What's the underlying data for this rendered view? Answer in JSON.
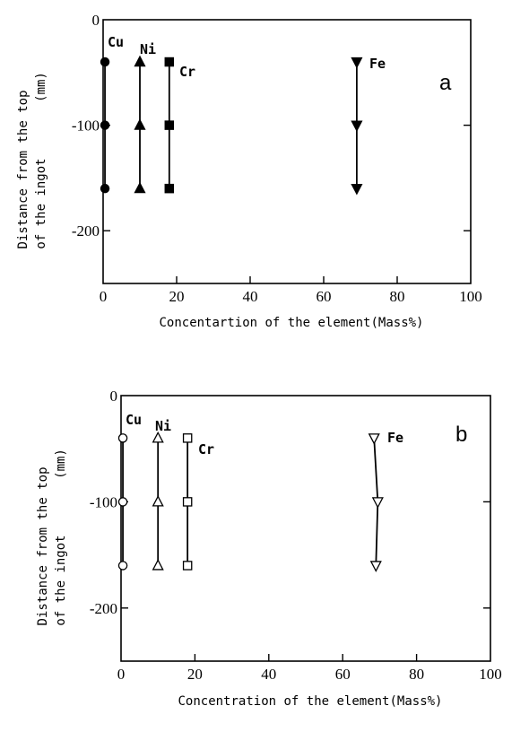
{
  "chart_data": [
    {
      "type": "scatter",
      "panel_label": "a",
      "marker_style": "filled",
      "xlabel": "Concentartion of the element(Mass%)",
      "ylabel_line1": "Distance from the top",
      "ylabel_unit": "(mm)",
      "ylabel_line2": "of the ingot",
      "xlim": [
        0,
        100
      ],
      "ylim": [
        -250,
        0
      ],
      "xticks": [
        "0",
        "20",
        "40",
        "60",
        "80",
        "100"
      ],
      "yticks": [
        "0",
        "-100",
        "-200"
      ],
      "series": [
        {
          "name": "Cu",
          "marker": "circle",
          "x": [
            0.5,
            0.5,
            0.5
          ],
          "y": [
            -40,
            -100,
            -160
          ]
        },
        {
          "name": "Ni",
          "marker": "triangle-up",
          "x": [
            10,
            10,
            10
          ],
          "y": [
            -40,
            -100,
            -160
          ]
        },
        {
          "name": "Cr",
          "marker": "square",
          "x": [
            18,
            18,
            18
          ],
          "y": [
            -40,
            -100,
            -160
          ]
        },
        {
          "name": "Fe",
          "marker": "triangle-down",
          "x": [
            69,
            69,
            69
          ],
          "y": [
            -40,
            -100,
            -160
          ]
        }
      ]
    },
    {
      "type": "scatter",
      "panel_label": "b",
      "marker_style": "open",
      "xlabel": "Concentration of the element(Mass%)",
      "ylabel_line1": "Distance from the top",
      "ylabel_unit": "(mm)",
      "ylabel_line2": "of the ingot",
      "xlim": [
        0,
        100
      ],
      "ylim": [
        -250,
        0
      ],
      "xticks": [
        "0",
        "20",
        "40",
        "60",
        "80",
        "100"
      ],
      "yticks": [
        "0",
        "-100",
        "-200"
      ],
      "series": [
        {
          "name": "Cu",
          "marker": "circle",
          "x": [
            0.5,
            0.5,
            0.5
          ],
          "y": [
            -40,
            -100,
            -160
          ]
        },
        {
          "name": "Ni",
          "marker": "triangle-up",
          "x": [
            10,
            10,
            10
          ],
          "y": [
            -40,
            -100,
            -160
          ]
        },
        {
          "name": "Cr",
          "marker": "square",
          "x": [
            18,
            18,
            18
          ],
          "y": [
            -40,
            -100,
            -160
          ]
        },
        {
          "name": "Fe",
          "marker": "triangle-down",
          "x": [
            68.5,
            69.5,
            69
          ],
          "y": [
            -40,
            -100,
            -160
          ]
        }
      ]
    }
  ]
}
